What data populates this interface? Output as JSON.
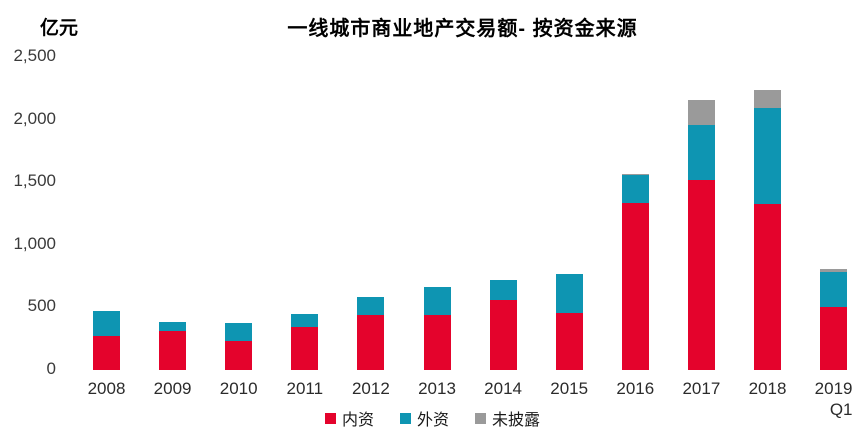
{
  "chart_data": {
    "type": "bar",
    "stacked": true,
    "title": "一线城市商业地产交易额- 按资金来源",
    "unit": "亿元",
    "categories": [
      "2008",
      "2009",
      "2010",
      "2011",
      "2012",
      "2013",
      "2014",
      "2015",
      "2016",
      "2017",
      "2018",
      "2019\nQ1"
    ],
    "series": [
      {
        "name": "内资",
        "color": "#E4032C",
        "values": [
          275,
          315,
          230,
          340,
          440,
          440,
          560,
          455,
          1330,
          1520,
          1325,
          505
        ]
      },
      {
        "name": "外资",
        "color": "#0E95B2",
        "values": [
          195,
          70,
          145,
          105,
          145,
          220,
          155,
          310,
          225,
          440,
          770,
          275
        ]
      },
      {
        "name": "未披露",
        "color": "#9A9A9A",
        "values": [
          0,
          0,
          0,
          0,
          0,
          0,
          0,
          0,
          10,
          195,
          145,
          30
        ]
      }
    ],
    "totals": [
      470,
      385,
      375,
      445,
      585,
      660,
      715,
      765,
      1565,
      2155,
      2240,
      810
    ],
    "ylabel": "亿元",
    "xlabel": "",
    "ylim": [
      0,
      2500
    ],
    "y_ticks": [
      "0",
      "500",
      "1,000",
      "1,500",
      "2,000",
      "2,500"
    ],
    "y_tick_values": [
      0,
      500,
      1000,
      1500,
      2000,
      2500
    ],
    "grid": false,
    "axis_lines": false,
    "legend_position": "bottom",
    "background": "#FFFFFF"
  }
}
